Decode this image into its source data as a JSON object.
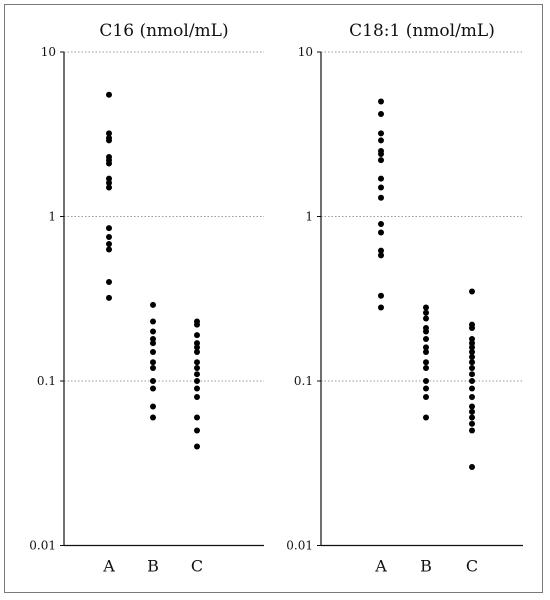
{
  "chart_data": [
    {
      "type": "scatter",
      "title": "C16 (nmol/mL)",
      "xlabel": "",
      "ylabel": "",
      "yscale": "log",
      "ylim": [
        0.01,
        10
      ],
      "yticks": [
        "10",
        "1",
        "0.1",
        "0.01"
      ],
      "grid": "horizontal dotted at decades",
      "categories": [
        "A",
        "B",
        "C"
      ],
      "series": [
        {
          "category": "A",
          "values": [
            5.5,
            3.2,
            3.0,
            2.9,
            2.3,
            2.2,
            2.1,
            1.7,
            1.6,
            1.5,
            0.85,
            0.75,
            0.68,
            0.63,
            0.4,
            0.32
          ]
        },
        {
          "category": "B",
          "values": [
            0.29,
            0.23,
            0.2,
            0.18,
            0.17,
            0.15,
            0.13,
            0.12,
            0.1,
            0.09,
            0.07,
            0.06
          ]
        },
        {
          "category": "C",
          "values": [
            0.23,
            0.22,
            0.19,
            0.17,
            0.16,
            0.15,
            0.13,
            0.12,
            0.11,
            0.1,
            0.09,
            0.08,
            0.06,
            0.05,
            0.04
          ]
        }
      ]
    },
    {
      "type": "scatter",
      "title": "C18:1 (nmol/mL)",
      "xlabel": "",
      "ylabel": "",
      "yscale": "log",
      "ylim": [
        0.01,
        10
      ],
      "yticks": [
        "10",
        "1",
        "0.1",
        "0.01"
      ],
      "grid": "horizontal dotted at decades",
      "categories": [
        "A",
        "B",
        "C"
      ],
      "series": [
        {
          "category": "A",
          "values": [
            5.0,
            4.2,
            3.2,
            2.9,
            2.5,
            2.4,
            2.2,
            1.7,
            1.5,
            1.3,
            0.9,
            0.8,
            0.62,
            0.58,
            0.33,
            0.28
          ]
        },
        {
          "category": "B",
          "values": [
            0.28,
            0.26,
            0.24,
            0.21,
            0.2,
            0.18,
            0.16,
            0.15,
            0.13,
            0.12,
            0.1,
            0.09,
            0.08,
            0.06
          ]
        },
        {
          "category": "C",
          "values": [
            0.35,
            0.22,
            0.21,
            0.18,
            0.17,
            0.16,
            0.15,
            0.14,
            0.13,
            0.12,
            0.11,
            0.1,
            0.09,
            0.08,
            0.07,
            0.065,
            0.06,
            0.055,
            0.05,
            0.03
          ]
        }
      ]
    }
  ]
}
